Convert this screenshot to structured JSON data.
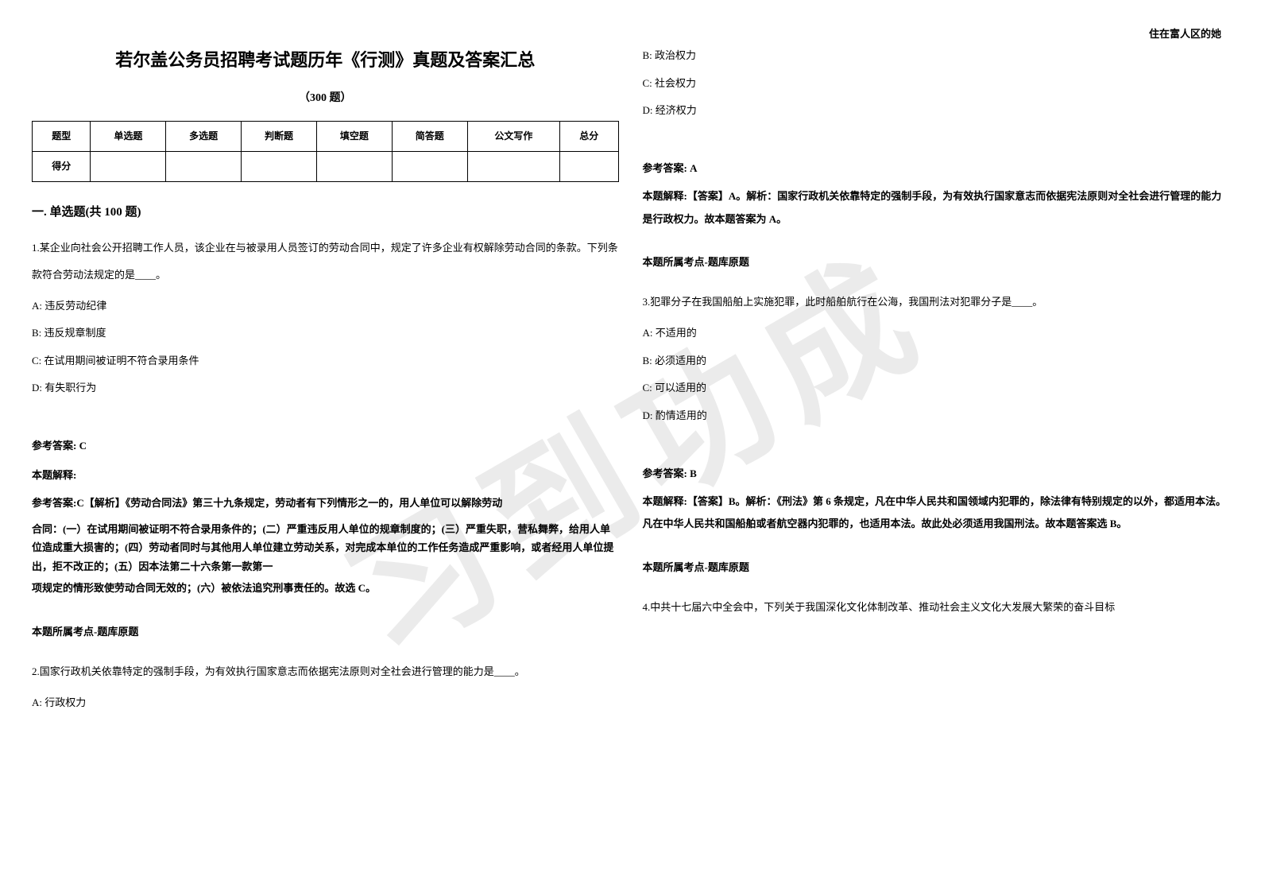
{
  "watermark": "习到功成",
  "header_right": "住在富人区的她",
  "main_title": "若尔盖公务员招聘考试题历年《行测》真题及答案汇总",
  "sub_title": "（300 题）",
  "table": {
    "headers": [
      "题型",
      "单选题",
      "多选题",
      "判断题",
      "填空题",
      "简答题",
      "公文写作",
      "总分"
    ],
    "row_label": "得分"
  },
  "section1_title": "一. 单选题(共 100 题)",
  "q1": {
    "text": "1.某企业向社会公开招聘工作人员，该企业在与被录用人员签订的劳动合同中，规定了许多企业有权解除劳动合同的条款。下列条款符合劳动法规定的是____。",
    "optA": "A: 违反劳动纪律",
    "optB": "B: 违反规章制度",
    "optC": "C: 在试用期间被证明不符合录用条件",
    "optD": "D: 有失职行为",
    "answer_label": "参考答案: C",
    "explain_label": "本题解释:",
    "explain1": "参考答案:C【解析】《劳动合同法》第三十九条规定，劳动者有下列情形之一的，用人单位可以解除劳动",
    "explain2": "合同：(一）在试用期间被证明不符合录用条件的；(二）严重违反用人单位的规章制度的；(三）严重失职，营私舞弊，给用人单位造成重大损害的；(四）劳动者同时与其他用人单位建立劳动关系，对完成本单位的工作任务造成严重影响，或者经用人单位提出，拒不改正的；(五）因本法第二十六条第一款第一",
    "explain3": "项规定的情形致使劳动合同无效的；(六）被依法追究刑事责任的。故选 C。",
    "topic": "本题所属考点-题库原题"
  },
  "q2": {
    "text": "2.国家行政机关依靠特定的强制手段，为有效执行国家意志而依据宪法原则对全社会进行管理的能力是____。",
    "optA": "A: 行政权力",
    "optB": "B: 政治权力",
    "optC": "C: 社会权力",
    "optD": "D: 经济权力",
    "answer_label": "参考答案: A",
    "explain": "本题解释:【答案】A。解析：国家行政机关依靠特定的强制手段，为有效执行国家意志而依据宪法原则对全社会进行管理的能力是行政权力。故本题答案为 A。",
    "topic": "本题所属考点-题库原题"
  },
  "q3": {
    "text": "3.犯罪分子在我国船舶上实施犯罪，此时船舶航行在公海，我国刑法对犯罪分子是____。",
    "optA": "A: 不适用的",
    "optB": "B: 必须适用的",
    "optC": "C: 可以适用的",
    "optD": "D: 酌情适用的",
    "answer_label": "参考答案: B",
    "explain": "本题解释:【答案】B。解析：《刑法》第 6 条规定，凡在中华人民共和国领域内犯罪的，除法律有特别规定的以外，都适用本法。凡在中华人民共和国船舶或者航空器内犯罪的，也适用本法。故此处必须适用我国刑法。故本题答案选 B。",
    "topic": "本题所属考点-题库原题"
  },
  "q4": {
    "text": "4.中共十七届六中全会中，下列关于我国深化文化体制改革、推动社会主义文化大发展大繁荣的奋斗目标"
  }
}
